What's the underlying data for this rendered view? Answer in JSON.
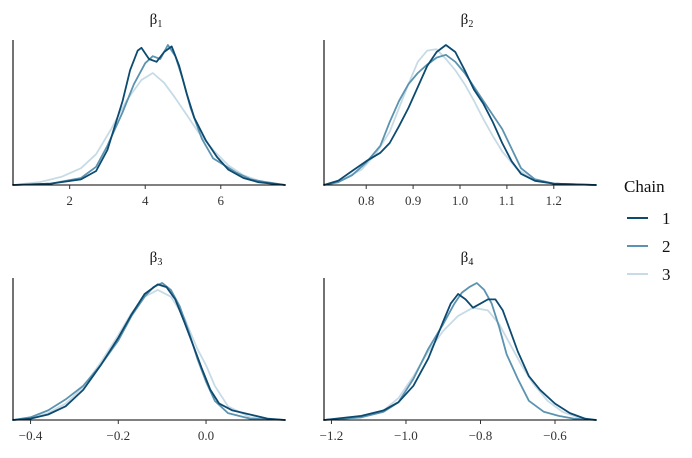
{
  "chart_data": [
    {
      "type": "line",
      "title": "β",
      "title_sub": "1",
      "xlim": [
        0.5,
        7.7
      ],
      "xticks": [
        2,
        4,
        6
      ],
      "xtick_labels": [
        "2",
        "4",
        "6"
      ],
      "series": [
        {
          "name": "1",
          "x": [
            0.5,
            1.5,
            2.3,
            2.7,
            3.0,
            3.4,
            3.6,
            3.8,
            3.9,
            4.1,
            4.3,
            4.5,
            4.7,
            4.9,
            5.1,
            5.3,
            5.6,
            5.9,
            6.2,
            6.6,
            7.0,
            7.7
          ],
          "y": [
            0.0,
            0.01,
            0.04,
            0.1,
            0.25,
            0.6,
            0.82,
            0.96,
            0.98,
            0.9,
            0.88,
            0.95,
            0.99,
            0.85,
            0.65,
            0.48,
            0.32,
            0.2,
            0.11,
            0.05,
            0.02,
            0.0
          ]
        },
        {
          "name": "2",
          "x": [
            0.5,
            1.5,
            2.3,
            2.7,
            3.0,
            3.4,
            3.7,
            4.0,
            4.2,
            4.4,
            4.6,
            4.8,
            5.0,
            5.2,
            5.5,
            5.8,
            6.1,
            6.4,
            6.8,
            7.2,
            7.7
          ],
          "y": [
            0.0,
            0.01,
            0.05,
            0.13,
            0.28,
            0.52,
            0.72,
            0.87,
            0.92,
            0.9,
            1.0,
            0.92,
            0.75,
            0.55,
            0.33,
            0.19,
            0.14,
            0.09,
            0.04,
            0.02,
            0.0
          ]
        },
        {
          "name": "3",
          "x": [
            0.5,
            1.2,
            1.8,
            2.3,
            2.7,
            3.1,
            3.5,
            3.9,
            4.2,
            4.5,
            4.8,
            5.1,
            5.4,
            5.8,
            6.2,
            6.6,
            7.0,
            7.7
          ],
          "y": [
            0.0,
            0.02,
            0.06,
            0.12,
            0.22,
            0.4,
            0.6,
            0.75,
            0.8,
            0.73,
            0.62,
            0.5,
            0.38,
            0.25,
            0.14,
            0.07,
            0.03,
            0.0
          ]
        }
      ]
    },
    {
      "type": "line",
      "title": "β",
      "title_sub": "2",
      "xlim": [
        0.71,
        1.29
      ],
      "xticks": [
        0.8,
        0.9,
        1.0,
        1.1,
        1.2
      ],
      "xtick_labels": [
        "0.8",
        "0.9",
        "1.0",
        "1.1",
        "1.2"
      ],
      "series": [
        {
          "name": "1",
          "x": [
            0.71,
            0.74,
            0.77,
            0.8,
            0.83,
            0.85,
            0.87,
            0.89,
            0.91,
            0.93,
            0.95,
            0.97,
            0.99,
            1.01,
            1.03,
            1.05,
            1.07,
            1.09,
            1.11,
            1.13,
            1.16,
            1.2,
            1.29
          ],
          "y": [
            0.0,
            0.03,
            0.1,
            0.17,
            0.23,
            0.3,
            0.42,
            0.55,
            0.7,
            0.85,
            0.95,
            1.0,
            0.95,
            0.82,
            0.68,
            0.58,
            0.45,
            0.3,
            0.17,
            0.08,
            0.03,
            0.01,
            0.0
          ]
        },
        {
          "name": "2",
          "x": [
            0.71,
            0.74,
            0.77,
            0.8,
            0.83,
            0.85,
            0.87,
            0.89,
            0.91,
            0.93,
            0.95,
            0.97,
            0.99,
            1.01,
            1.03,
            1.05,
            1.07,
            1.09,
            1.11,
            1.13,
            1.16,
            1.2,
            1.29
          ],
          "y": [
            0.0,
            0.02,
            0.07,
            0.16,
            0.28,
            0.45,
            0.6,
            0.72,
            0.8,
            0.86,
            0.91,
            0.93,
            0.88,
            0.8,
            0.7,
            0.6,
            0.5,
            0.4,
            0.26,
            0.12,
            0.04,
            0.01,
            0.0
          ]
        },
        {
          "name": "3",
          "x": [
            0.71,
            0.75,
            0.79,
            0.82,
            0.85,
            0.87,
            0.89,
            0.91,
            0.93,
            0.95,
            0.97,
            0.99,
            1.01,
            1.03,
            1.05,
            1.07,
            1.09,
            1.12,
            1.15,
            1.2,
            1.29
          ],
          "y": [
            0.0,
            0.04,
            0.11,
            0.22,
            0.38,
            0.55,
            0.72,
            0.88,
            0.96,
            0.97,
            0.9,
            0.82,
            0.72,
            0.6,
            0.47,
            0.35,
            0.24,
            0.12,
            0.05,
            0.01,
            0.0
          ]
        }
      ]
    },
    {
      "type": "line",
      "title": "β",
      "title_sub": "3",
      "xlim": [
        -0.44,
        0.18
      ],
      "xticks": [
        -0.4,
        -0.2,
        0.0
      ],
      "xtick_labels": [
        "−0.4",
        "−0.2",
        "0.0"
      ],
      "series": [
        {
          "name": "1",
          "x": [
            -0.44,
            -0.4,
            -0.36,
            -0.32,
            -0.28,
            -0.24,
            -0.2,
            -0.17,
            -0.14,
            -0.11,
            -0.09,
            -0.07,
            -0.05,
            -0.03,
            -0.01,
            0.01,
            0.03,
            0.06,
            0.1,
            0.14,
            0.18
          ],
          "y": [
            0.0,
            0.01,
            0.04,
            0.1,
            0.22,
            0.4,
            0.6,
            0.77,
            0.92,
            0.99,
            0.97,
            0.88,
            0.72,
            0.55,
            0.38,
            0.22,
            0.12,
            0.07,
            0.04,
            0.01,
            0.0
          ]
        },
        {
          "name": "2",
          "x": [
            -0.44,
            -0.4,
            -0.36,
            -0.32,
            -0.28,
            -0.24,
            -0.2,
            -0.17,
            -0.14,
            -0.12,
            -0.1,
            -0.08,
            -0.06,
            -0.04,
            -0.02,
            0.0,
            0.02,
            0.05,
            0.1,
            0.18
          ],
          "y": [
            0.0,
            0.02,
            0.07,
            0.15,
            0.25,
            0.4,
            0.58,
            0.76,
            0.9,
            0.97,
            1.0,
            0.95,
            0.83,
            0.65,
            0.45,
            0.28,
            0.14,
            0.05,
            0.01,
            0.0
          ]
        },
        {
          "name": "3",
          "x": [
            -0.44,
            -0.4,
            -0.36,
            -0.32,
            -0.28,
            -0.24,
            -0.2,
            -0.17,
            -0.14,
            -0.11,
            -0.08,
            -0.05,
            -0.02,
            0.0,
            0.02,
            0.05,
            0.1,
            0.18
          ],
          "y": [
            0.0,
            0.01,
            0.05,
            0.12,
            0.24,
            0.42,
            0.62,
            0.78,
            0.9,
            0.95,
            0.9,
            0.75,
            0.52,
            0.4,
            0.25,
            0.1,
            0.02,
            0.0
          ]
        }
      ]
    },
    {
      "type": "line",
      "title": "β",
      "title_sub": "4",
      "xlim": [
        -1.22,
        -0.49
      ],
      "xticks": [
        -1.2,
        -1.0,
        -0.8,
        -0.6
      ],
      "xtick_labels": [
        "−1.2",
        "−1.0",
        "−0.8",
        "−0.6"
      ],
      "series": [
        {
          "name": "1",
          "x": [
            -1.22,
            -1.12,
            -1.06,
            -1.02,
            -0.98,
            -0.94,
            -0.9,
            -0.88,
            -0.86,
            -0.84,
            -0.82,
            -0.8,
            -0.78,
            -0.76,
            -0.74,
            -0.72,
            -0.7,
            -0.67,
            -0.64,
            -0.6,
            -0.56,
            -0.52,
            -0.49
          ],
          "y": [
            0.0,
            0.03,
            0.07,
            0.13,
            0.25,
            0.45,
            0.72,
            0.85,
            0.92,
            0.88,
            0.82,
            0.85,
            0.88,
            0.88,
            0.8,
            0.65,
            0.5,
            0.32,
            0.22,
            0.12,
            0.05,
            0.01,
            0.0
          ]
        },
        {
          "name": "2",
          "x": [
            -1.22,
            -1.12,
            -1.06,
            -1.02,
            -0.98,
            -0.94,
            -0.9,
            -0.87,
            -0.85,
            -0.83,
            -0.81,
            -0.79,
            -0.77,
            -0.75,
            -0.73,
            -0.7,
            -0.67,
            -0.63,
            -0.59,
            -0.55,
            -0.49
          ],
          "y": [
            0.0,
            0.02,
            0.06,
            0.13,
            0.3,
            0.52,
            0.7,
            0.85,
            0.93,
            0.97,
            1.0,
            0.95,
            0.85,
            0.68,
            0.48,
            0.3,
            0.14,
            0.06,
            0.03,
            0.01,
            0.0
          ]
        },
        {
          "name": "3",
          "x": [
            -1.22,
            -1.12,
            -1.06,
            -1.02,
            -0.98,
            -0.94,
            -0.9,
            -0.86,
            -0.82,
            -0.78,
            -0.75,
            -0.72,
            -0.69,
            -0.66,
            -0.62,
            -0.58,
            -0.54,
            -0.49
          ],
          "y": [
            0.0,
            0.02,
            0.07,
            0.16,
            0.32,
            0.5,
            0.65,
            0.76,
            0.82,
            0.8,
            0.7,
            0.55,
            0.4,
            0.27,
            0.14,
            0.06,
            0.02,
            0.0
          ]
        }
      ]
    }
  ],
  "legend": {
    "title": "Chain",
    "items": [
      {
        "label": "1",
        "color": "#0d4a70"
      },
      {
        "label": "2",
        "color": "#5b93b0"
      },
      {
        "label": "3",
        "color": "#c7dbe6"
      }
    ]
  }
}
